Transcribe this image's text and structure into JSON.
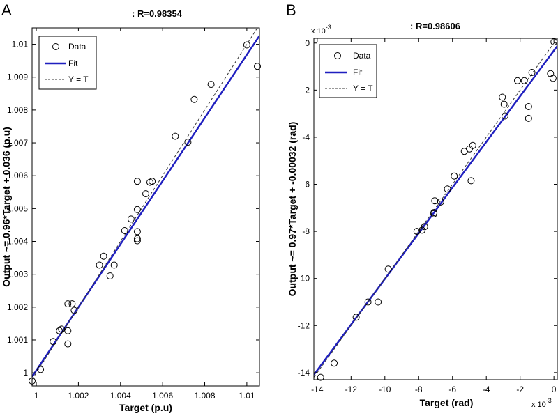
{
  "figure": {
    "panel_labels": [
      "A",
      "B"
    ]
  },
  "chart_data": [
    {
      "type": "scatter",
      "panel": "A",
      "title": ": R=0.98354",
      "xlabel": "Target  (p.u)",
      "ylabel": "Output ~= 0.96*Target + 0.036  (p.u)",
      "xlim": [
        0.9998,
        1.0106
      ],
      "ylim": [
        0.9996,
        1.0105
      ],
      "xticks": [
        1,
        1.002,
        1.004,
        1.006,
        1.008,
        1.01
      ],
      "xticklabels": [
        "1",
        "1.002",
        "1.004",
        "1.006",
        "1.008",
        "1.01"
      ],
      "yticks": [
        1,
        1.001,
        1.002,
        1.003,
        1.004,
        1.005,
        1.006,
        1.007,
        1.008,
        1.009,
        1.01
      ],
      "yticklabels": [
        "1",
        "1.001",
        "1.002",
        "1.003",
        "1.004",
        "1.005",
        "1.006",
        "1.007",
        "1.008",
        "1.009",
        "1.01"
      ],
      "legend": {
        "placement": "top-left",
        "entries": [
          "Data",
          "Fit",
          "Y = T"
        ]
      },
      "series": [
        {
          "name": "Data",
          "style": "circle-marker",
          "points": [
            [
              0.9998,
              0.99975
            ],
            [
              1.0002,
              1.0001
            ],
            [
              1.0008,
              1.00095
            ],
            [
              1.0011,
              1.00128
            ],
            [
              1.0012,
              1.00133
            ],
            [
              1.0015,
              1.00088
            ],
            [
              1.0015,
              1.00128
            ],
            [
              1.0015,
              1.0021
            ],
            [
              1.0017,
              1.0021
            ],
            [
              1.0018,
              1.0019
            ],
            [
              1.003,
              1.00328
            ],
            [
              1.0032,
              1.00355
            ],
            [
              1.0035,
              1.00295
            ],
            [
              1.0037,
              1.00328
            ],
            [
              1.0042,
              1.00433
            ],
            [
              1.0045,
              1.00468
            ],
            [
              1.0048,
              1.00402
            ],
            [
              1.0048,
              1.00408
            ],
            [
              1.0048,
              1.0043
            ],
            [
              1.0048,
              1.00497
            ],
            [
              1.0048,
              1.00583
            ],
            [
              1.0052,
              1.00545
            ],
            [
              1.0054,
              1.0058
            ],
            [
              1.0055,
              1.00583
            ],
            [
              1.0066,
              1.0072
            ],
            [
              1.0072,
              1.00702
            ],
            [
              1.0075,
              1.00832
            ],
            [
              1.0083,
              1.00878
            ],
            [
              1.01,
              1.00998
            ],
            [
              1.0105,
              1.00933
            ]
          ]
        },
        {
          "name": "Fit",
          "style": "solid",
          "color": "#1f1fbf",
          "x": [
            0.9998,
            1.0106
          ],
          "y": [
            0.99988,
            1.01026
          ]
        },
        {
          "name": "Y = T",
          "style": "dashed",
          "color": "#333333",
          "x": [
            0.9998,
            1.0106
          ],
          "y": [
            0.9998,
            1.0106
          ]
        }
      ]
    },
    {
      "type": "scatter",
      "panel": "B",
      "title": ": R=0.98606",
      "xlabel": "Target (rad)",
      "ylabel": "Output ~= 0.97*Target + -0.00032  (rad)",
      "x_multiplier": "x 10",
      "x_multiplier_exp": "-3",
      "y_multiplier": "x 10",
      "y_multiplier_exp": "-3",
      "xlim": [
        -14.2,
        0.2
      ],
      "ylim": [
        -14.3,
        0.2
      ],
      "xticks": [
        -14,
        -12,
        -10,
        -8,
        -6,
        -4,
        -2,
        0
      ],
      "xticklabels": [
        "-14",
        "-12",
        "-10",
        "-8",
        "-6",
        "-4",
        "-2",
        "0"
      ],
      "yticks": [
        0,
        -2,
        -4,
        -6,
        -8,
        -10,
        -12,
        -14
      ],
      "yticklabels": [
        "0",
        "-2",
        "-4",
        "-6",
        "-8",
        "-10",
        "-12",
        "-14"
      ],
      "legend": {
        "placement": "top-left",
        "entries": [
          "Data",
          "Fit",
          "Y = T"
        ]
      },
      "series": [
        {
          "name": "Data",
          "style": "circle-marker",
          "points": [
            [
              -13.8,
              -14.2
            ],
            [
              -13.0,
              -13.6
            ],
            [
              -11.7,
              -11.65
            ],
            [
              -11.0,
              -11.0
            ],
            [
              -10.4,
              -11.0
            ],
            [
              -9.8,
              -9.6
            ],
            [
              -8.1,
              -8.0
            ],
            [
              -7.8,
              -7.95
            ],
            [
              -7.65,
              -7.8
            ],
            [
              -7.1,
              -7.2
            ],
            [
              -7.1,
              -7.25
            ],
            [
              -7.05,
              -6.7
            ],
            [
              -6.7,
              -6.75
            ],
            [
              -6.3,
              -6.2
            ],
            [
              -5.9,
              -5.65
            ],
            [
              -5.3,
              -4.6
            ],
            [
              -5.0,
              -4.5
            ],
            [
              -4.9,
              -5.85
            ],
            [
              -4.8,
              -4.35
            ],
            [
              -3.05,
              -2.3
            ],
            [
              -2.95,
              -2.6
            ],
            [
              -2.9,
              -3.1
            ],
            [
              -2.15,
              -1.6
            ],
            [
              -1.75,
              -1.6
            ],
            [
              -1.5,
              -2.7
            ],
            [
              -1.5,
              -3.2
            ],
            [
              -1.3,
              -1.25
            ],
            [
              -0.2,
              -1.3
            ],
            [
              -0.05,
              -1.5
            ],
            [
              0.0,
              0.05
            ]
          ]
        },
        {
          "name": "Fit",
          "style": "solid",
          "color": "#1f1fbf",
          "x": [
            -14.2,
            0.2
          ],
          "y": [
            -14.094,
            -0.126
          ]
        },
        {
          "name": "Y = T",
          "style": "dashed",
          "color": "#333333",
          "x": [
            -14.2,
            0.2
          ],
          "y": [
            -14.2,
            0.2
          ]
        }
      ]
    }
  ]
}
